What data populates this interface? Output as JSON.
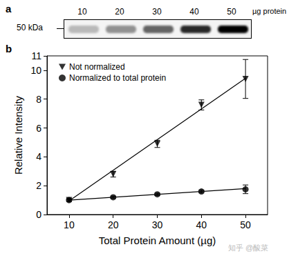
{
  "panels": {
    "a": {
      "label": "a",
      "marker": "50 kDa",
      "lanes": [
        10,
        20,
        30,
        40,
        50
      ],
      "lane_unit": "µg protein"
    },
    "b": {
      "label": "b"
    }
  },
  "watermark": "知乎 @酸菜",
  "chart_data": {
    "type": "scatter",
    "xlabel": "Total Protein Amount (µg)",
    "ylabel": "Relative Intensity",
    "x": [
      10,
      20,
      30,
      40,
      50
    ],
    "xlim": [
      5,
      55
    ],
    "xticks": [
      10,
      20,
      30,
      40,
      50
    ],
    "ylim": [
      0,
      11
    ],
    "yticks": [
      0,
      2,
      4,
      6,
      8,
      10
    ],
    "grid": false,
    "legend": "upper left",
    "series": [
      {
        "name": "Not normalized",
        "color": "#000000",
        "marker": "triangle-down",
        "values": [
          1.0,
          2.8,
          4.9,
          7.6,
          9.4
        ],
        "errors": [
          0.1,
          0.2,
          0.25,
          0.35,
          1.35
        ],
        "fit": {
          "x": [
            10,
            50
          ],
          "values": [
            0.95,
            9.45
          ]
        }
      },
      {
        "name": "Normalized to total protein",
        "color": "#000000",
        "marker": "circle",
        "values": [
          1.0,
          1.2,
          1.4,
          1.6,
          1.75
        ],
        "errors": [
          0.05,
          0.08,
          0.08,
          0.1,
          0.3
        ],
        "fit": {
          "x": [
            10,
            50
          ],
          "values": [
            1.0,
            1.8
          ]
        }
      }
    ]
  }
}
